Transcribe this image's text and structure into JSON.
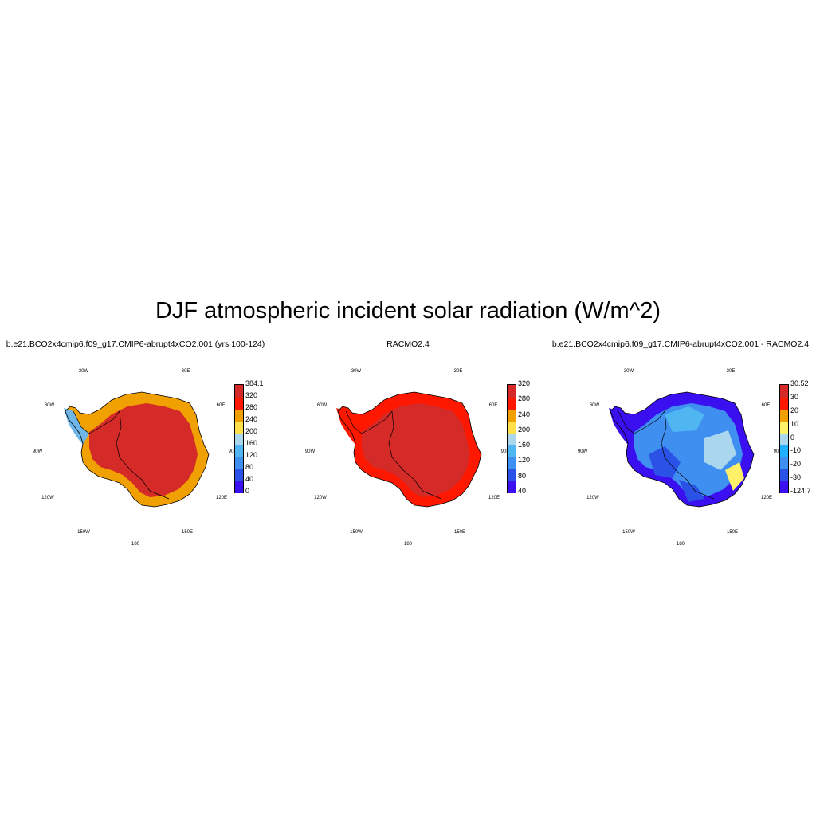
{
  "title": "DJF atmospheric incident solar radiation (W/m^2)",
  "longitude_labels": [
    "30W",
    "30E",
    "60W",
    "60E",
    "90W",
    "90E",
    "120W",
    "120E",
    "150W",
    "150E",
    "180"
  ],
  "panels": [
    {
      "title": "b.e21.BCO2x4cmip6.f09_g17.CMIP6-abrupt4xCO2.001 (yrs 100-124)",
      "colors": [
        "#3b10f0",
        "#2a52e6",
        "#3f8ff0",
        "#4fb6f2",
        "#aad6ee",
        "#ffe04a",
        "#f0a000",
        "#ff1800",
        "#d42a28"
      ],
      "colorbar_labels": [
        "384.1",
        "320",
        "280",
        "240",
        "200",
        "160",
        "120",
        "80",
        "40",
        "0"
      ],
      "coast_color": "#f0a000",
      "interior_color": "#d42a28",
      "peninsula_color": "#6fb7e8"
    },
    {
      "title": "RACMO2.4",
      "colors": [
        "#3b10f0",
        "#2a52e6",
        "#3f8ff0",
        "#4fb6f2",
        "#aad6ee",
        "#ffe04a",
        "#f0a000",
        "#ff1800",
        "#d42a28"
      ],
      "colorbar_labels": [
        "320",
        "280",
        "240",
        "200",
        "160",
        "120",
        "80",
        "40"
      ],
      "coast_color": "#ff1800",
      "interior_color": "#d42a28",
      "peninsula_color": "#ff1800"
    },
    {
      "title": "b.e21.BCO2x4cmip6.f09_g17.CMIP6-abrupt4xCO2.001 - RACMO2.4",
      "colors": [
        "#3b10f0",
        "#2a52e6",
        "#3f8ff0",
        "#1fb0ff",
        "#aad6ee",
        "#fff06a",
        "#f0a000",
        "#ff1800",
        "#d42a28"
      ],
      "colorbar_labels": [
        "30.52",
        "30",
        "20",
        "10",
        "0",
        "-10",
        "-20",
        "-30",
        "-124.7"
      ],
      "coast_color": "#3b10f0",
      "interior_color": "#3f8ff0",
      "peninsula_color": "#3b10f0"
    }
  ]
}
